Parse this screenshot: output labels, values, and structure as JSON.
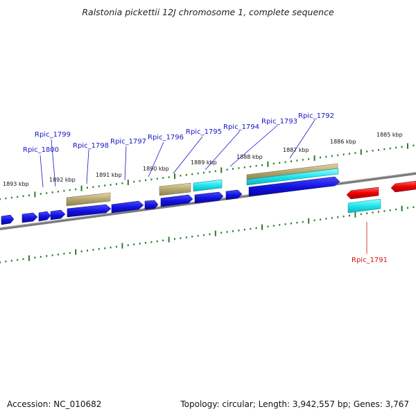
{
  "title": "Ralstonia pickettii 12J chromosome 1, complete sequence",
  "footer": {
    "accession": "Accession: NC_010682",
    "summary": "Topology: circular; Length: 3,942,557 bp; Genes: 3,767"
  },
  "colors": {
    "forward_gene": "#1010dd",
    "reverse_gene": "#ee0000",
    "rna_like": "#b4a870",
    "cds_like": "#1ee6ee",
    "label_forward": "#1515c8",
    "label_reverse": "#d41010",
    "ticks": "#2a7a2a",
    "backbone": "#7a7a7a"
  },
  "scale_labels": [
    "1893 kbp",
    "1892 kbp",
    "1891 kbp",
    "1890 kbp",
    "1889 kbp",
    "1888 kbp",
    "1887 kbp",
    "1886 kbp",
    "1885 kbp"
  ],
  "gene_labels": {
    "forward": [
      "Rpic_1800",
      "Rpic_1799",
      "Rpic_1798",
      "Rpic_1797",
      "Rpic_1796",
      "Rpic_1795",
      "Rpic_1794",
      "Rpic_1793",
      "Rpic_1792"
    ],
    "reverse": [
      "Rpic_1791"
    ]
  }
}
